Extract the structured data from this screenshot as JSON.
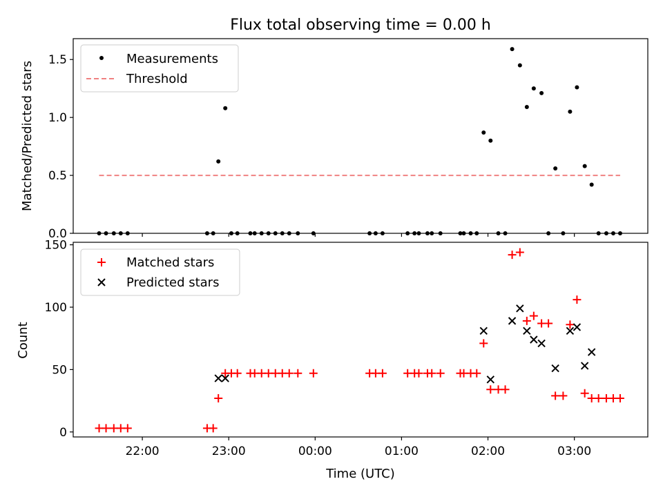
{
  "chart_data": [
    {
      "type": "scatter",
      "title": "Flux total observing time = 0.00 h",
      "xlabel": "",
      "ylabel": "Matched/Predicted stars",
      "x_unit": "time (UTC, hours; values >= 24 are after midnight)",
      "xlim": [
        21.2,
        27.85
      ],
      "ylim": [
        0,
        1.68
      ],
      "x_ticks": [
        22,
        23,
        24,
        25,
        26,
        27
      ],
      "x_tick_labels": [],
      "y_ticks": [
        0,
        0.5,
        1.0,
        1.5
      ],
      "y_tick_labels": [
        "0.0",
        "0.5",
        "1.0",
        "1.5"
      ],
      "grid": false,
      "legend": "top-left",
      "series": [
        {
          "name": "Measurements",
          "marker": "dot",
          "color": "#000000",
          "points": [
            [
              21.5,
              0
            ],
            [
              21.58,
              0
            ],
            [
              21.67,
              0
            ],
            [
              21.75,
              0
            ],
            [
              21.83,
              0
            ],
            [
              22.75,
              0
            ],
            [
              22.82,
              0
            ],
            [
              22.88,
              0.62
            ],
            [
              22.96,
              1.08
            ],
            [
              23.03,
              0
            ],
            [
              23.1,
              0
            ],
            [
              23.25,
              0
            ],
            [
              23.3,
              0
            ],
            [
              23.38,
              0
            ],
            [
              23.46,
              0
            ],
            [
              23.54,
              0
            ],
            [
              23.62,
              0
            ],
            [
              23.7,
              0
            ],
            [
              23.8,
              0
            ],
            [
              23.98,
              0
            ],
            [
              24.63,
              0
            ],
            [
              24.7,
              0
            ],
            [
              24.78,
              0
            ],
            [
              25.07,
              0
            ],
            [
              25.15,
              0
            ],
            [
              25.2,
              0
            ],
            [
              25.3,
              0
            ],
            [
              25.35,
              0
            ],
            [
              25.45,
              0
            ],
            [
              25.68,
              0
            ],
            [
              25.72,
              0
            ],
            [
              25.8,
              0
            ],
            [
              25.87,
              0
            ],
            [
              25.95,
              0.87
            ],
            [
              26.03,
              0.8
            ],
            [
              26.12,
              0
            ],
            [
              26.2,
              0
            ],
            [
              26.28,
              1.59
            ],
            [
              26.37,
              1.45
            ],
            [
              26.45,
              1.09
            ],
            [
              26.53,
              1.25
            ],
            [
              26.62,
              1.21
            ],
            [
              26.7,
              0
            ],
            [
              26.78,
              0.56
            ],
            [
              26.87,
              0
            ],
            [
              26.95,
              1.05
            ],
            [
              27.03,
              1.26
            ],
            [
              27.12,
              0.58
            ],
            [
              27.2,
              0.42
            ],
            [
              27.28,
              0
            ],
            [
              27.37,
              0
            ],
            [
              27.45,
              0
            ],
            [
              27.53,
              0
            ]
          ]
        },
        {
          "name": "Threshold",
          "style": "dashed",
          "color": "#f08080",
          "x": [
            21.5,
            27.53
          ],
          "y": [
            0.5,
            0.5
          ]
        }
      ]
    },
    {
      "type": "scatter",
      "title": "",
      "xlabel": "Time (UTC)",
      "ylabel": "Count",
      "x_unit": "time (UTC, hours; values >= 24 are after midnight)",
      "xlim": [
        21.2,
        27.85
      ],
      "ylim": [
        -4,
        152
      ],
      "x_ticks": [
        22,
        23,
        24,
        25,
        26,
        27
      ],
      "x_tick_labels": [
        "22:00",
        "23:00",
        "00:00",
        "01:00",
        "02:00",
        "03:00"
      ],
      "y_ticks": [
        0,
        50,
        100,
        150
      ],
      "y_tick_labels": [
        "0",
        "50",
        "100",
        "150"
      ],
      "grid": false,
      "legend": "top-left",
      "series": [
        {
          "name": "Matched stars",
          "marker": "plus",
          "color": "#ff0000",
          "points": [
            [
              21.5,
              3
            ],
            [
              21.58,
              3
            ],
            [
              21.67,
              3
            ],
            [
              21.75,
              3
            ],
            [
              21.83,
              3
            ],
            [
              22.75,
              3
            ],
            [
              22.82,
              3
            ],
            [
              22.88,
              27
            ],
            [
              22.96,
              47
            ],
            [
              23.03,
              47
            ],
            [
              23.1,
              47
            ],
            [
              23.25,
              47
            ],
            [
              23.3,
              47
            ],
            [
              23.38,
              47
            ],
            [
              23.46,
              47
            ],
            [
              23.54,
              47
            ],
            [
              23.62,
              47
            ],
            [
              23.7,
              47
            ],
            [
              23.8,
              47
            ],
            [
              23.98,
              47
            ],
            [
              24.63,
              47
            ],
            [
              24.7,
              47
            ],
            [
              24.78,
              47
            ],
            [
              25.07,
              47
            ],
            [
              25.15,
              47
            ],
            [
              25.2,
              47
            ],
            [
              25.3,
              47
            ],
            [
              25.35,
              47
            ],
            [
              25.45,
              47
            ],
            [
              25.68,
              47
            ],
            [
              25.72,
              47
            ],
            [
              25.8,
              47
            ],
            [
              25.87,
              47
            ],
            [
              25.95,
              71
            ],
            [
              26.03,
              34
            ],
            [
              26.12,
              34
            ],
            [
              26.2,
              34
            ],
            [
              26.28,
              142
            ],
            [
              26.37,
              144
            ],
            [
              26.45,
              89
            ],
            [
              26.53,
              93
            ],
            [
              26.62,
              87
            ],
            [
              26.7,
              87
            ],
            [
              26.78,
              29
            ],
            [
              26.87,
              29
            ],
            [
              26.95,
              86
            ],
            [
              27.03,
              106
            ],
            [
              27.12,
              31
            ],
            [
              27.2,
              27
            ],
            [
              27.28,
              27
            ],
            [
              27.37,
              27
            ],
            [
              27.45,
              27
            ],
            [
              27.53,
              27
            ]
          ]
        },
        {
          "name": "Predicted stars",
          "marker": "x",
          "color": "#000000",
          "points": [
            [
              22.88,
              43
            ],
            [
              22.96,
              43
            ],
            [
              25.95,
              81
            ],
            [
              26.03,
              42
            ],
            [
              26.28,
              89
            ],
            [
              26.37,
              99
            ],
            [
              26.45,
              81
            ],
            [
              26.53,
              74
            ],
            [
              26.62,
              71
            ],
            [
              26.78,
              51
            ],
            [
              26.95,
              81
            ],
            [
              27.03,
              84
            ],
            [
              27.12,
              53
            ],
            [
              27.2,
              64
            ]
          ]
        }
      ]
    }
  ]
}
